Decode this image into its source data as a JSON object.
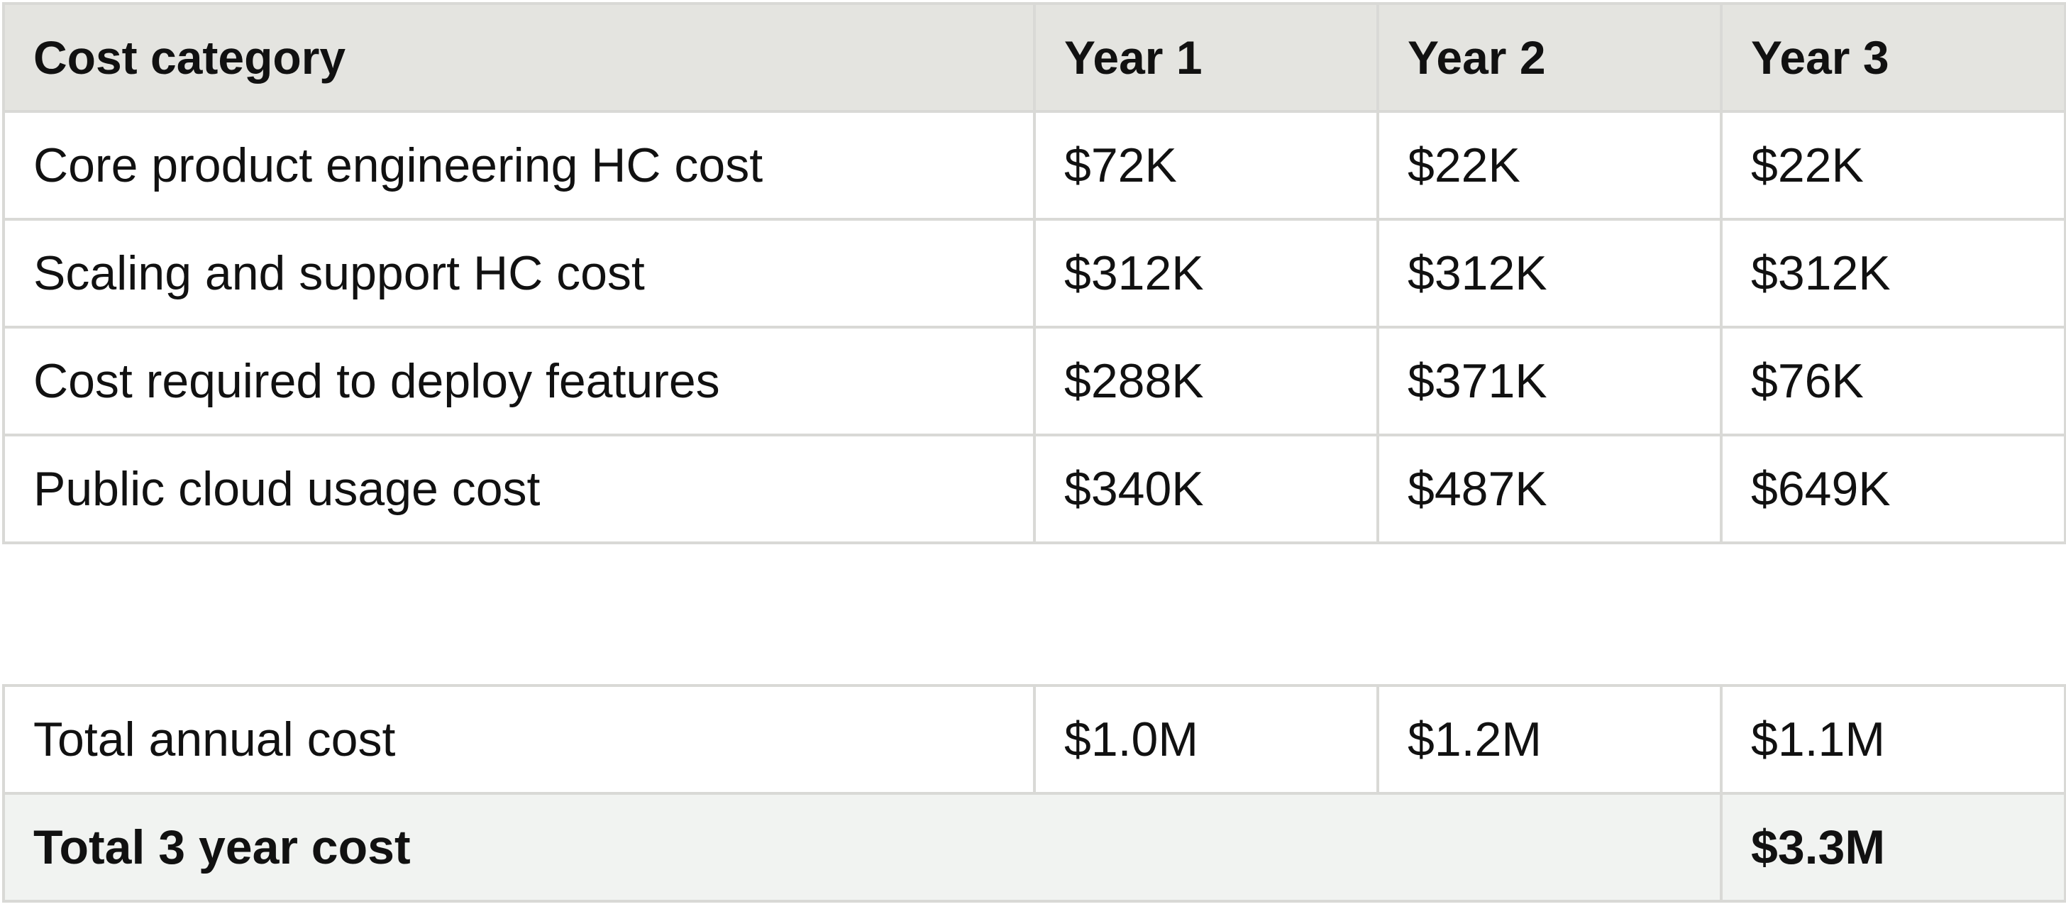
{
  "headers": {
    "category": "Cost category",
    "year1": "Year 1",
    "year2": "Year 2",
    "year3": "Year 3"
  },
  "rows": [
    {
      "category": "Core product engineering HC cost",
      "year1": "$72K",
      "year2": "$22K",
      "year3": "$22K"
    },
    {
      "category": "Scaling and support HC cost",
      "year1": "$312K",
      "year2": "$312K",
      "year3": "$312K"
    },
    {
      "category": "Cost required to deploy features",
      "year1": "$288K",
      "year2": "$371K",
      "year3": "$76K"
    },
    {
      "category": "Public cloud usage cost",
      "year1": "$340K",
      "year2": "$487K",
      "year3": "$649K"
    }
  ],
  "totals": {
    "annual": {
      "label": "Total annual cost",
      "year1": "$1.0M",
      "year2": "$1.2M",
      "year3": "$1.1M"
    },
    "three_year": {
      "label": "Total 3 year cost",
      "value": "$3.3M"
    }
  },
  "colors": {
    "header_bg": "#e4e4e0",
    "grand_total_bg": "#f1f3f1",
    "border": "#d9d9d6",
    "text": "#111111"
  }
}
